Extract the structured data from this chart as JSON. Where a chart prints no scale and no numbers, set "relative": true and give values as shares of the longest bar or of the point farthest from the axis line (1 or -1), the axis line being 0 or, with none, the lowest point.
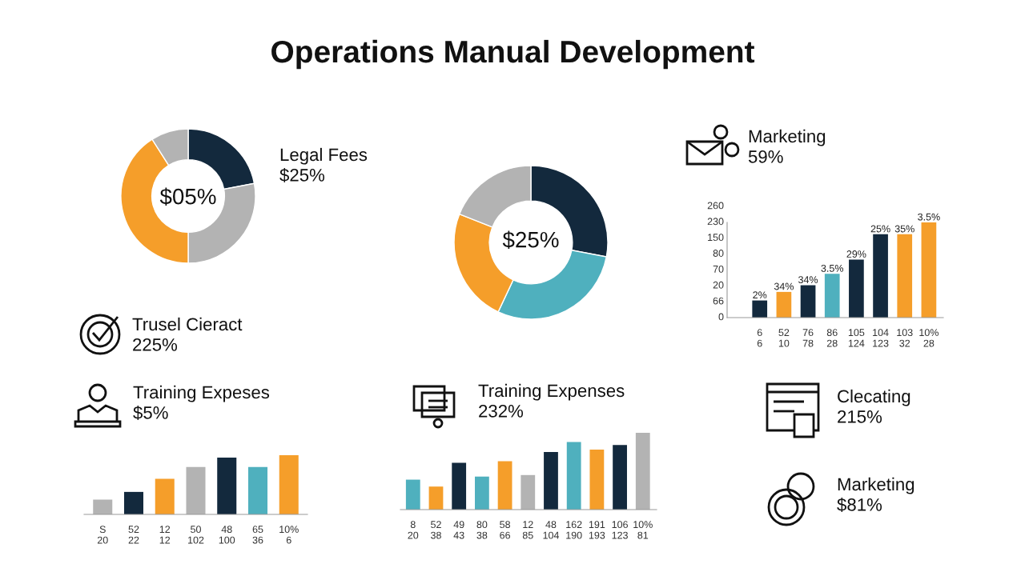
{
  "chart_data": [
    {
      "type": "other",
      "title": "Operations Manual Development",
      "annotations": [
        "Trusel Cieract\n225%",
        "Clecating\n215%",
        "Marketing\n$81%"
      ]
    },
    {
      "type": "donut",
      "categories": [
        null,
        null,
        null,
        null
      ],
      "values": [
        22,
        28,
        41,
        9
      ],
      "colors": [
        "#13293d",
        "#b3b3b3",
        "#f59e2a",
        "#b3b3b3"
      ],
      "annotations": [
        "$05%",
        "Legal Fees\n$25%"
      ]
    },
    {
      "type": "donut",
      "categories": [
        null,
        null,
        null,
        null
      ],
      "values": [
        28,
        29,
        24,
        19
      ],
      "colors": [
        "#13293d",
        "#4fb0be",
        "#f59e2a",
        "#b3b3b3"
      ],
      "annotations": [
        "$25%"
      ]
    },
    {
      "type": "bar",
      "title": "Marketing\n59%",
      "categories": [
        "6\n6",
        "52\n10",
        "76\n78",
        "86\n28",
        "105\n124",
        "104\n123",
        "103\n32",
        "10%\n28"
      ],
      "relative": true,
      "values": [
        0.18,
        0.27,
        0.34,
        0.46,
        0.61,
        0.875,
        0.875,
        1
      ],
      "colors": [
        "#13293d",
        "#f59e2a",
        "#13293d",
        "#4fb0be",
        "#13293d",
        "#13293d",
        "#f59e2a",
        "#f59e2a"
      ],
      "annotations": [
        "0",
        "66",
        "20",
        "70",
        "80",
        "150",
        "230",
        "260",
        "2%",
        "34%",
        "34%",
        "3.5%",
        "29%",
        "25%",
        "35%",
        "3.5%"
      ]
    },
    {
      "type": "bar",
      "title": "Training Expeses\n$5%",
      "relative": true,
      "tick_labels": "x",
      "categories": [
        "S\n20",
        "52\n22",
        "12\n12",
        "50\n102",
        "48\n100",
        "65\n36",
        "10%\n6"
      ],
      "values": [
        0.25,
        0.38,
        0.6,
        0.8,
        0.96,
        0.8,
        1
      ],
      "colors": [
        "#b3b3b3",
        "#13293d",
        "#f59e2a",
        "#b3b3b3",
        "#13293d",
        "#4fb0be",
        "#f59e2a"
      ]
    },
    {
      "type": "bar",
      "title": "Training Expenses\n232%",
      "relative": true,
      "tick_labels": "x",
      "categories": [
        "8\n20",
        "52\n38",
        "49\n43",
        "80\n38",
        "58\n66",
        "12\n85",
        "48\n104",
        "162\n190",
        "191\n193",
        "106\n123",
        "10%\n81"
      ],
      "values": [
        0.39,
        0.3,
        0.61,
        0.43,
        0.63,
        0.45,
        0.75,
        0.88,
        0.78,
        0.84,
        1
      ],
      "colors": [
        "#4fb0be",
        "#f59e2a",
        "#13293d",
        "#4fb0be",
        "#f59e2a",
        "#b3b3b3",
        "#13293d",
        "#4fb0be",
        "#f59e2a",
        "#13293d",
        "#b3b3b3"
      ]
    }
  ]
}
